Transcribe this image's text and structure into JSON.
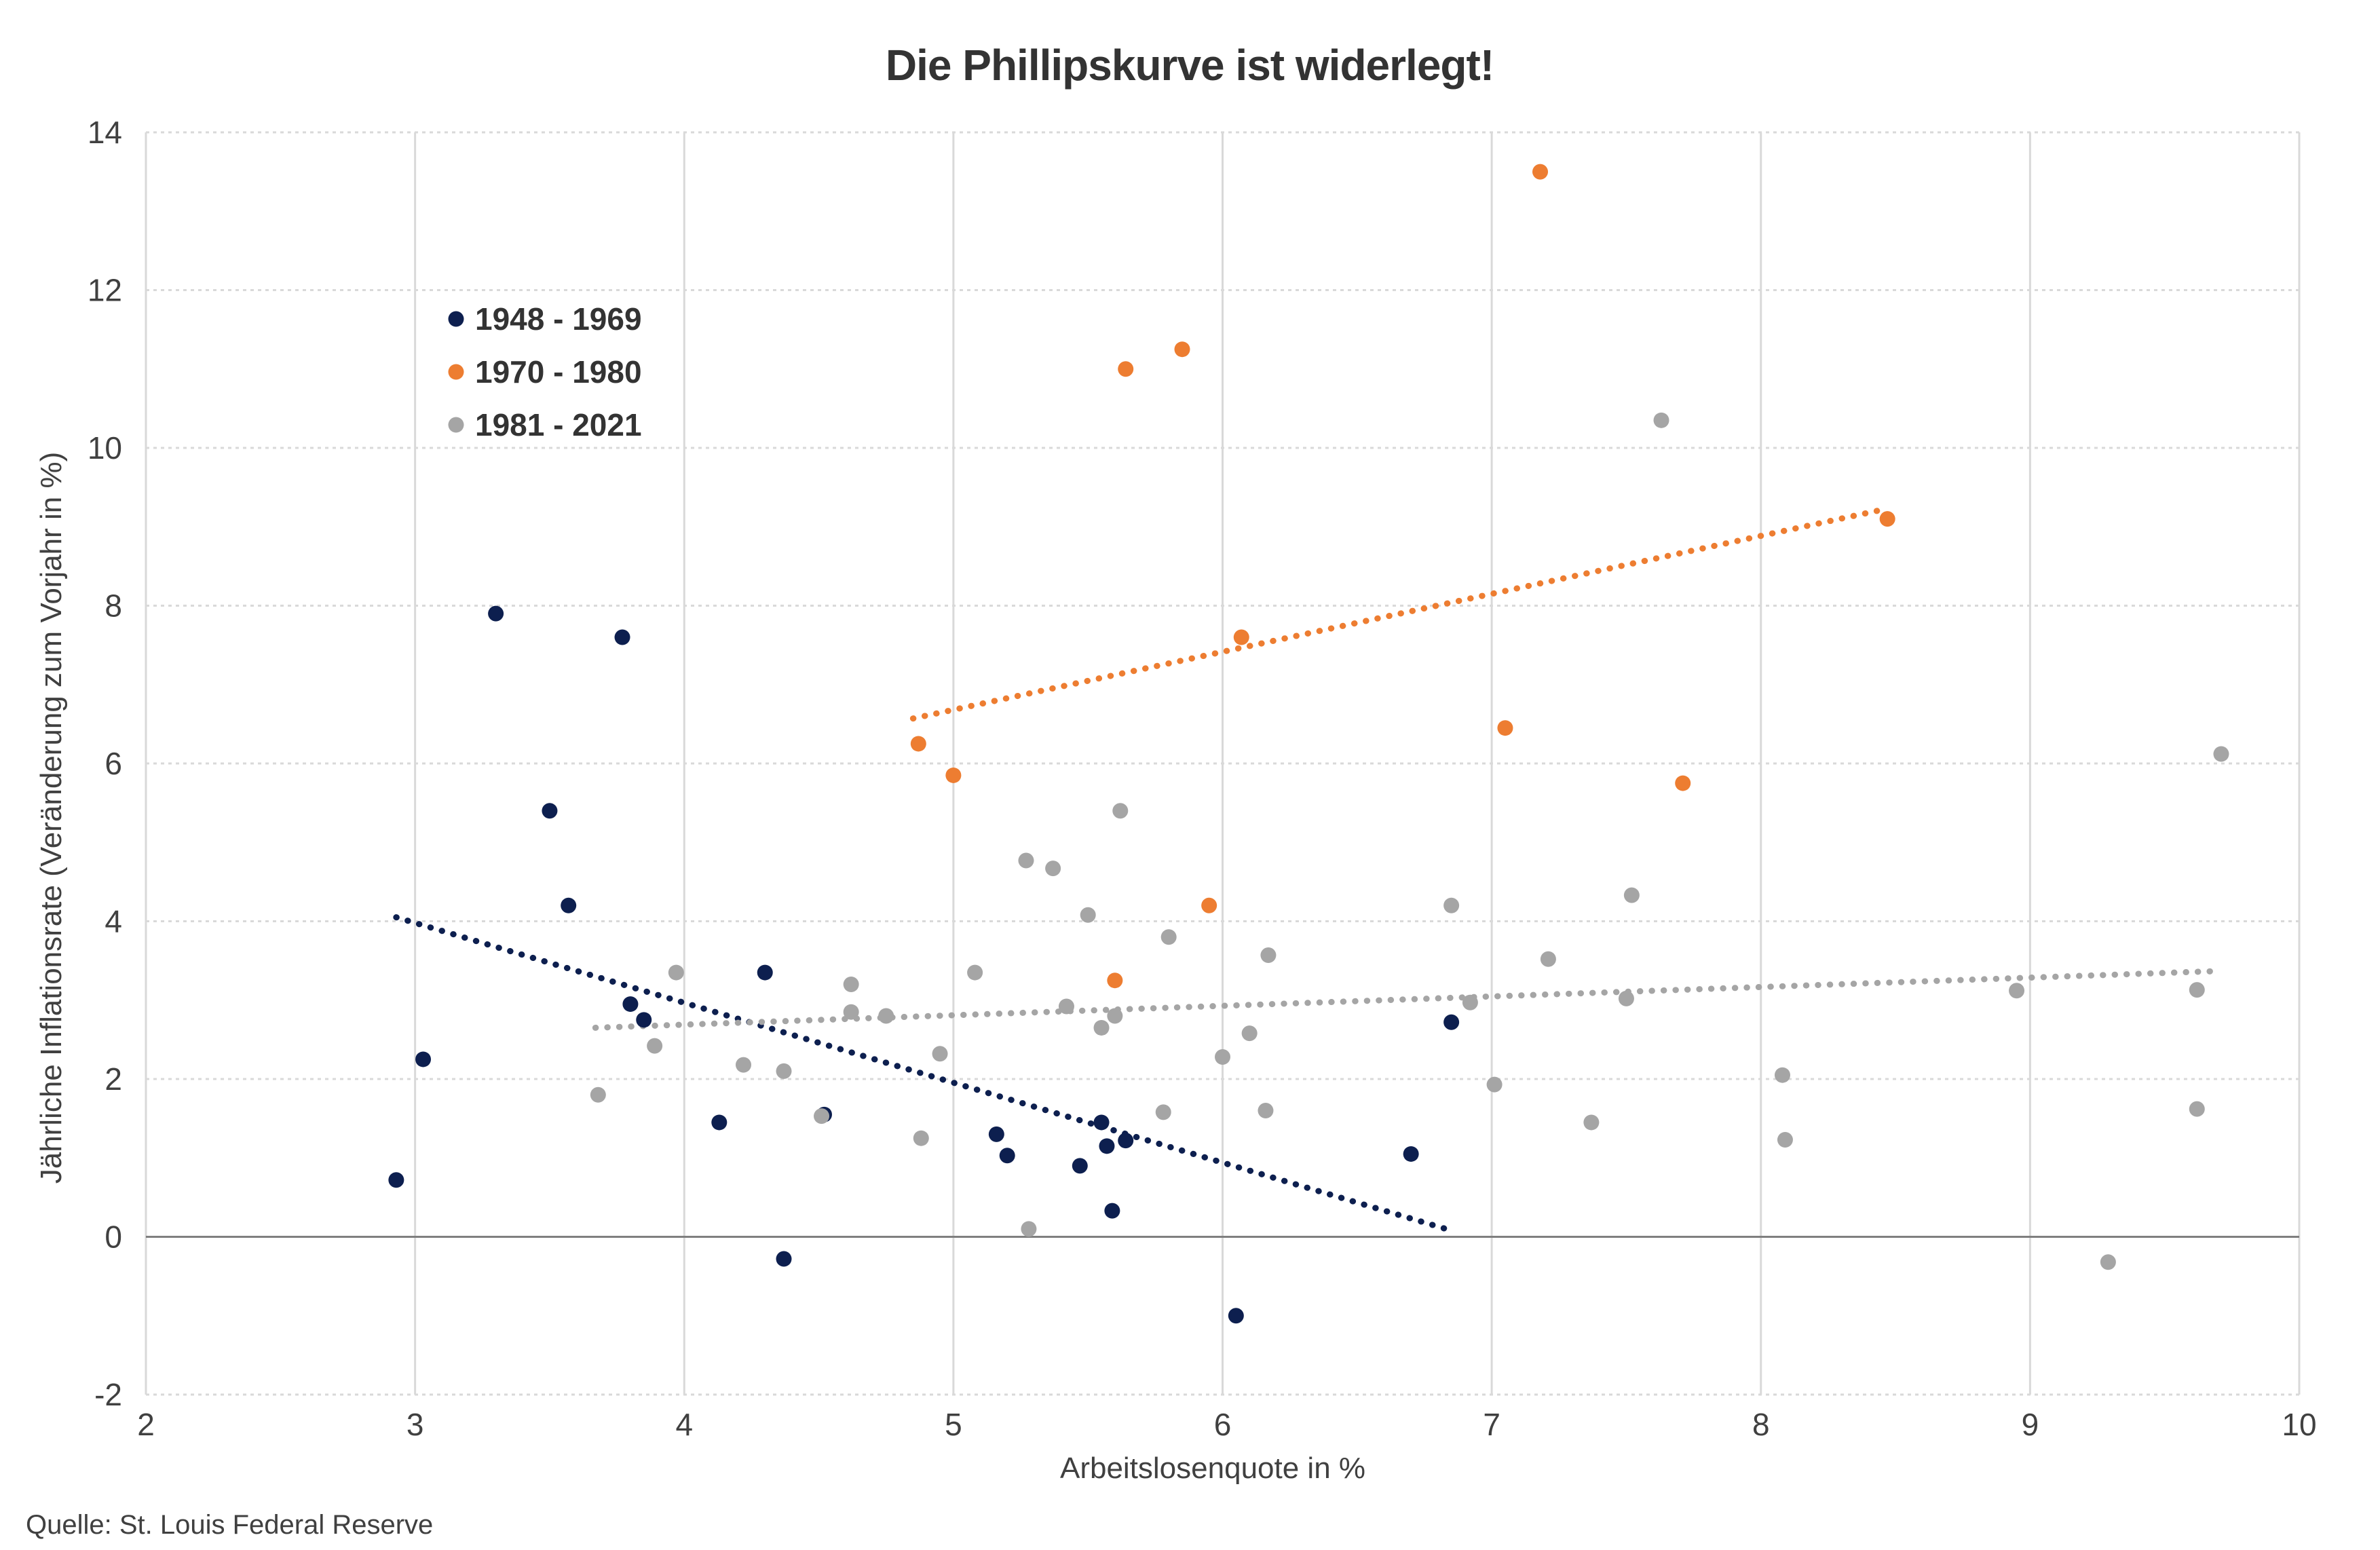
{
  "chart_data": {
    "type": "scatter",
    "title": "Die Phillipskurve ist widerlegt!",
    "xlabel": "Arbeitslosenquote in %",
    "ylabel": "Jährliche Inflationsrate (Veränderung zum Vorjahr in %)",
    "xlim": [
      2,
      10
    ],
    "ylim": [
      -2,
      14
    ],
    "xticks": [
      "2",
      "3",
      "4",
      "5",
      "6",
      "7",
      "8",
      "9",
      "10"
    ],
    "yticks": [
      "-2",
      "0",
      "2",
      "4",
      "6",
      "8",
      "10",
      "12",
      "14"
    ],
    "grid": true,
    "legend_position": "top-left",
    "source": "Quelle: St. Louis Federal Reserve",
    "series": [
      {
        "name": "1948 - 1969",
        "color": "#0d1f4f",
        "points": [
          [
            3.3,
            7.9
          ],
          [
            3.77,
            7.6
          ],
          [
            3.5,
            5.4
          ],
          [
            3.57,
            4.2
          ],
          [
            3.03,
            2.25
          ],
          [
            2.93,
            0.72
          ],
          [
            3.8,
            2.95
          ],
          [
            3.85,
            2.75
          ],
          [
            4.3,
            3.35
          ],
          [
            4.13,
            1.45
          ],
          [
            4.37,
            -0.28
          ],
          [
            4.52,
            1.55
          ],
          [
            5.16,
            1.3
          ],
          [
            5.2,
            1.03
          ],
          [
            5.47,
            0.9
          ],
          [
            5.55,
            1.45
          ],
          [
            5.57,
            1.15
          ],
          [
            5.64,
            1.22
          ],
          [
            5.59,
            0.33
          ],
          [
            6.05,
            -1.0
          ],
          [
            6.7,
            1.05
          ],
          [
            6.85,
            2.72
          ]
        ],
        "trend": [
          [
            2.93,
            4.05
          ],
          [
            6.83,
            0.1
          ]
        ]
      },
      {
        "name": "1970 - 1980",
        "color": "#ed7d31",
        "points": [
          [
            7.18,
            13.5
          ],
          [
            5.85,
            11.25
          ],
          [
            5.64,
            11.0
          ],
          [
            8.47,
            9.1
          ],
          [
            6.07,
            7.6
          ],
          [
            7.05,
            6.45
          ],
          [
            4.87,
            6.25
          ],
          [
            5.0,
            5.85
          ],
          [
            7.71,
            5.75
          ],
          [
            5.95,
            4.2
          ],
          [
            5.6,
            3.25
          ]
        ],
        "trend": [
          [
            4.85,
            6.57
          ],
          [
            8.47,
            9.23
          ]
        ]
      },
      {
        "name": "1981 - 2021",
        "color": "#a5a5a5",
        "points": [
          [
            7.63,
            10.35
          ],
          [
            9.71,
            6.12
          ],
          [
            5.62,
            5.4
          ],
          [
            5.27,
            4.77
          ],
          [
            5.37,
            4.67
          ],
          [
            7.52,
            4.33
          ],
          [
            6.85,
            4.2
          ],
          [
            5.5,
            4.08
          ],
          [
            5.8,
            3.8
          ],
          [
            6.17,
            3.57
          ],
          [
            7.21,
            3.52
          ],
          [
            3.97,
            3.35
          ],
          [
            5.08,
            3.35
          ],
          [
            4.62,
            3.2
          ],
          [
            8.95,
            3.12
          ],
          [
            9.62,
            3.13
          ],
          [
            6.92,
            2.97
          ],
          [
            7.5,
            3.02
          ],
          [
            5.42,
            2.92
          ],
          [
            4.62,
            2.85
          ],
          [
            4.75,
            2.8
          ],
          [
            5.6,
            2.8
          ],
          [
            5.55,
            2.65
          ],
          [
            6.1,
            2.58
          ],
          [
            3.89,
            2.42
          ],
          [
            4.95,
            2.32
          ],
          [
            6.0,
            2.28
          ],
          [
            4.22,
            2.18
          ],
          [
            4.37,
            2.1
          ],
          [
            8.08,
            2.05
          ],
          [
            7.01,
            1.93
          ],
          [
            3.68,
            1.8
          ],
          [
            5.78,
            1.58
          ],
          [
            6.16,
            1.6
          ],
          [
            9.62,
            1.62
          ],
          [
            4.51,
            1.53
          ],
          [
            7.37,
            1.45
          ],
          [
            4.88,
            1.25
          ],
          [
            8.09,
            1.23
          ],
          [
            5.28,
            0.1
          ],
          [
            9.29,
            -0.32
          ]
        ],
        "trend": [
          [
            3.67,
            2.65
          ],
          [
            9.71,
            3.37
          ]
        ]
      }
    ]
  }
}
